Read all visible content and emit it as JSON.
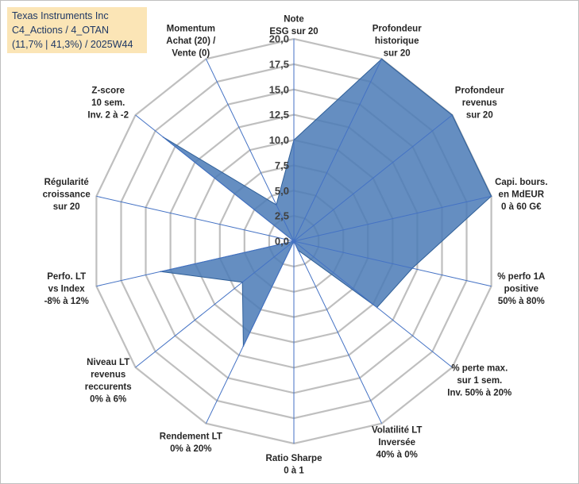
{
  "title_box": {
    "line1": "Texas Instruments Inc",
    "line2": "C4_Actions / 4_OTAN",
    "line3": "(11,7% | 41,3%) / 2025W44"
  },
  "chart_data": {
    "type": "radar",
    "r_range": [
      0,
      20
    ],
    "tick_values": [
      0,
      2.5,
      5,
      7.5,
      10,
      12.5,
      15,
      17.5,
      20
    ],
    "tick_labels": [
      "0,0",
      "2,5",
      "5,0",
      "7,5",
      "10,0",
      "12,5",
      "15,0",
      "17,5",
      "20,0"
    ],
    "axes": [
      {
        "lines": [
          "Note",
          "ESG sur 20"
        ]
      },
      {
        "lines": [
          "Profondeur",
          "historique",
          "sur 20"
        ]
      },
      {
        "lines": [
          "Profondeur",
          "revenus",
          "sur 20"
        ]
      },
      {
        "lines": [
          "Capi. bours.",
          "en MdEUR",
          "0 à 60 G€"
        ]
      },
      {
        "lines": [
          "% perfo 1A",
          "positive",
          "50% à 80%"
        ]
      },
      {
        "lines": [
          "% perte max.",
          "sur 1 sem.",
          "Inv. 50% à 20%"
        ]
      },
      {
        "lines": [
          "Volatilité LT",
          "Inversée",
          "40% à 0%"
        ]
      },
      {
        "lines": [
          "Ratio Sharpe",
          "0 à 1"
        ]
      },
      {
        "lines": [
          "Rendement LT",
          "0% à 20%"
        ]
      },
      {
        "lines": [
          "Niveau LT",
          "revenus",
          "reccurents",
          "0% à 6%"
        ]
      },
      {
        "lines": [
          "Perfo. LT",
          "vs Index",
          "-8% à 12%"
        ]
      },
      {
        "lines": [
          "Régularité",
          "croissance",
          "sur 20"
        ]
      },
      {
        "lines": [
          "Z-score",
          "10 sem.",
          "Inv. 2 à -2"
        ]
      },
      {
        "lines": [
          "Momentum",
          "Achat (20) /",
          "Vente (0)"
        ]
      }
    ],
    "series": [
      {
        "values": [
          10.0,
          20.0,
          20.0,
          20.0,
          12.0,
          10.5,
          1.0,
          0.0,
          11.5,
          6.5,
          13.5,
          0.0,
          16.5,
          4.0
        ]
      }
    ],
    "grid": true,
    "colors": {
      "fill": "#4a7ab6",
      "stroke": "#2f5f98",
      "grid": "#bfbfbf",
      "axis": "#4472c4"
    }
  }
}
